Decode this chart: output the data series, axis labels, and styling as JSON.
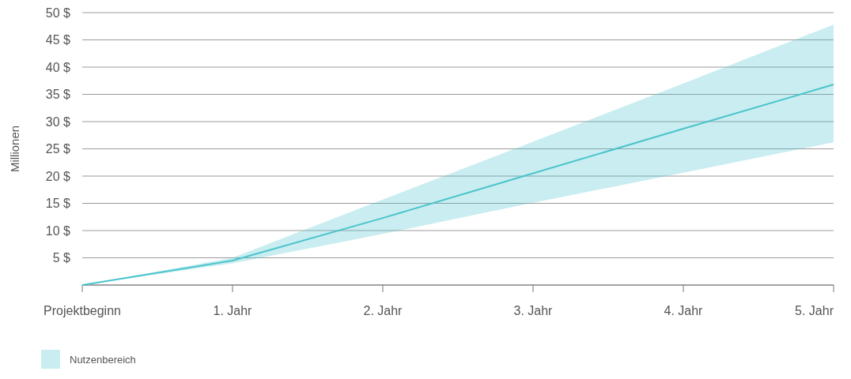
{
  "chart_data": {
    "type": "line",
    "ylabel": "Millionen",
    "x": [
      0,
      1,
      2,
      3,
      4,
      5
    ],
    "xlim": [
      0,
      5
    ],
    "xticks": [
      {
        "value": 0,
        "label": "Projektbeginn"
      },
      {
        "value": 1,
        "label": "1. Jahr"
      },
      {
        "value": 2,
        "label": "2. Jahr"
      },
      {
        "value": 3,
        "label": "3. Jahr"
      },
      {
        "value": 4,
        "label": "4. Jahr"
      },
      {
        "value": 5,
        "label": "5. Jahr"
      }
    ],
    "ylim": [
      0,
      50
    ],
    "yticks": [
      {
        "value": 0,
        "label": null
      },
      {
        "value": 5,
        "label": "5 $"
      },
      {
        "value": 10,
        "label": "10 $"
      },
      {
        "value": 15,
        "label": "15 $"
      },
      {
        "value": 20,
        "label": "20 $"
      },
      {
        "value": 25,
        "label": "25 $"
      },
      {
        "value": 30,
        "label": "30 $"
      },
      {
        "value": 35,
        "label": "35 $"
      },
      {
        "value": 40,
        "label": "40 $"
      },
      {
        "value": 45,
        "label": "45 $"
      },
      {
        "value": 50,
        "label": "50 $"
      }
    ],
    "series": [
      {
        "name": "Nutzenbereich",
        "color": "#4bc4cc",
        "values": [
          0,
          4.5,
          12.3,
          20.5,
          28.7,
          36.8
        ],
        "lower": [
          0,
          4,
          9.4,
          15.1,
          20.6,
          26.2
        ],
        "upper": [
          0,
          5,
          15.7,
          26.3,
          37,
          47.8
        ]
      }
    ],
    "grid": "y",
    "legend": "bottom left",
    "marker": "none",
    "line_style": "solid"
  }
}
